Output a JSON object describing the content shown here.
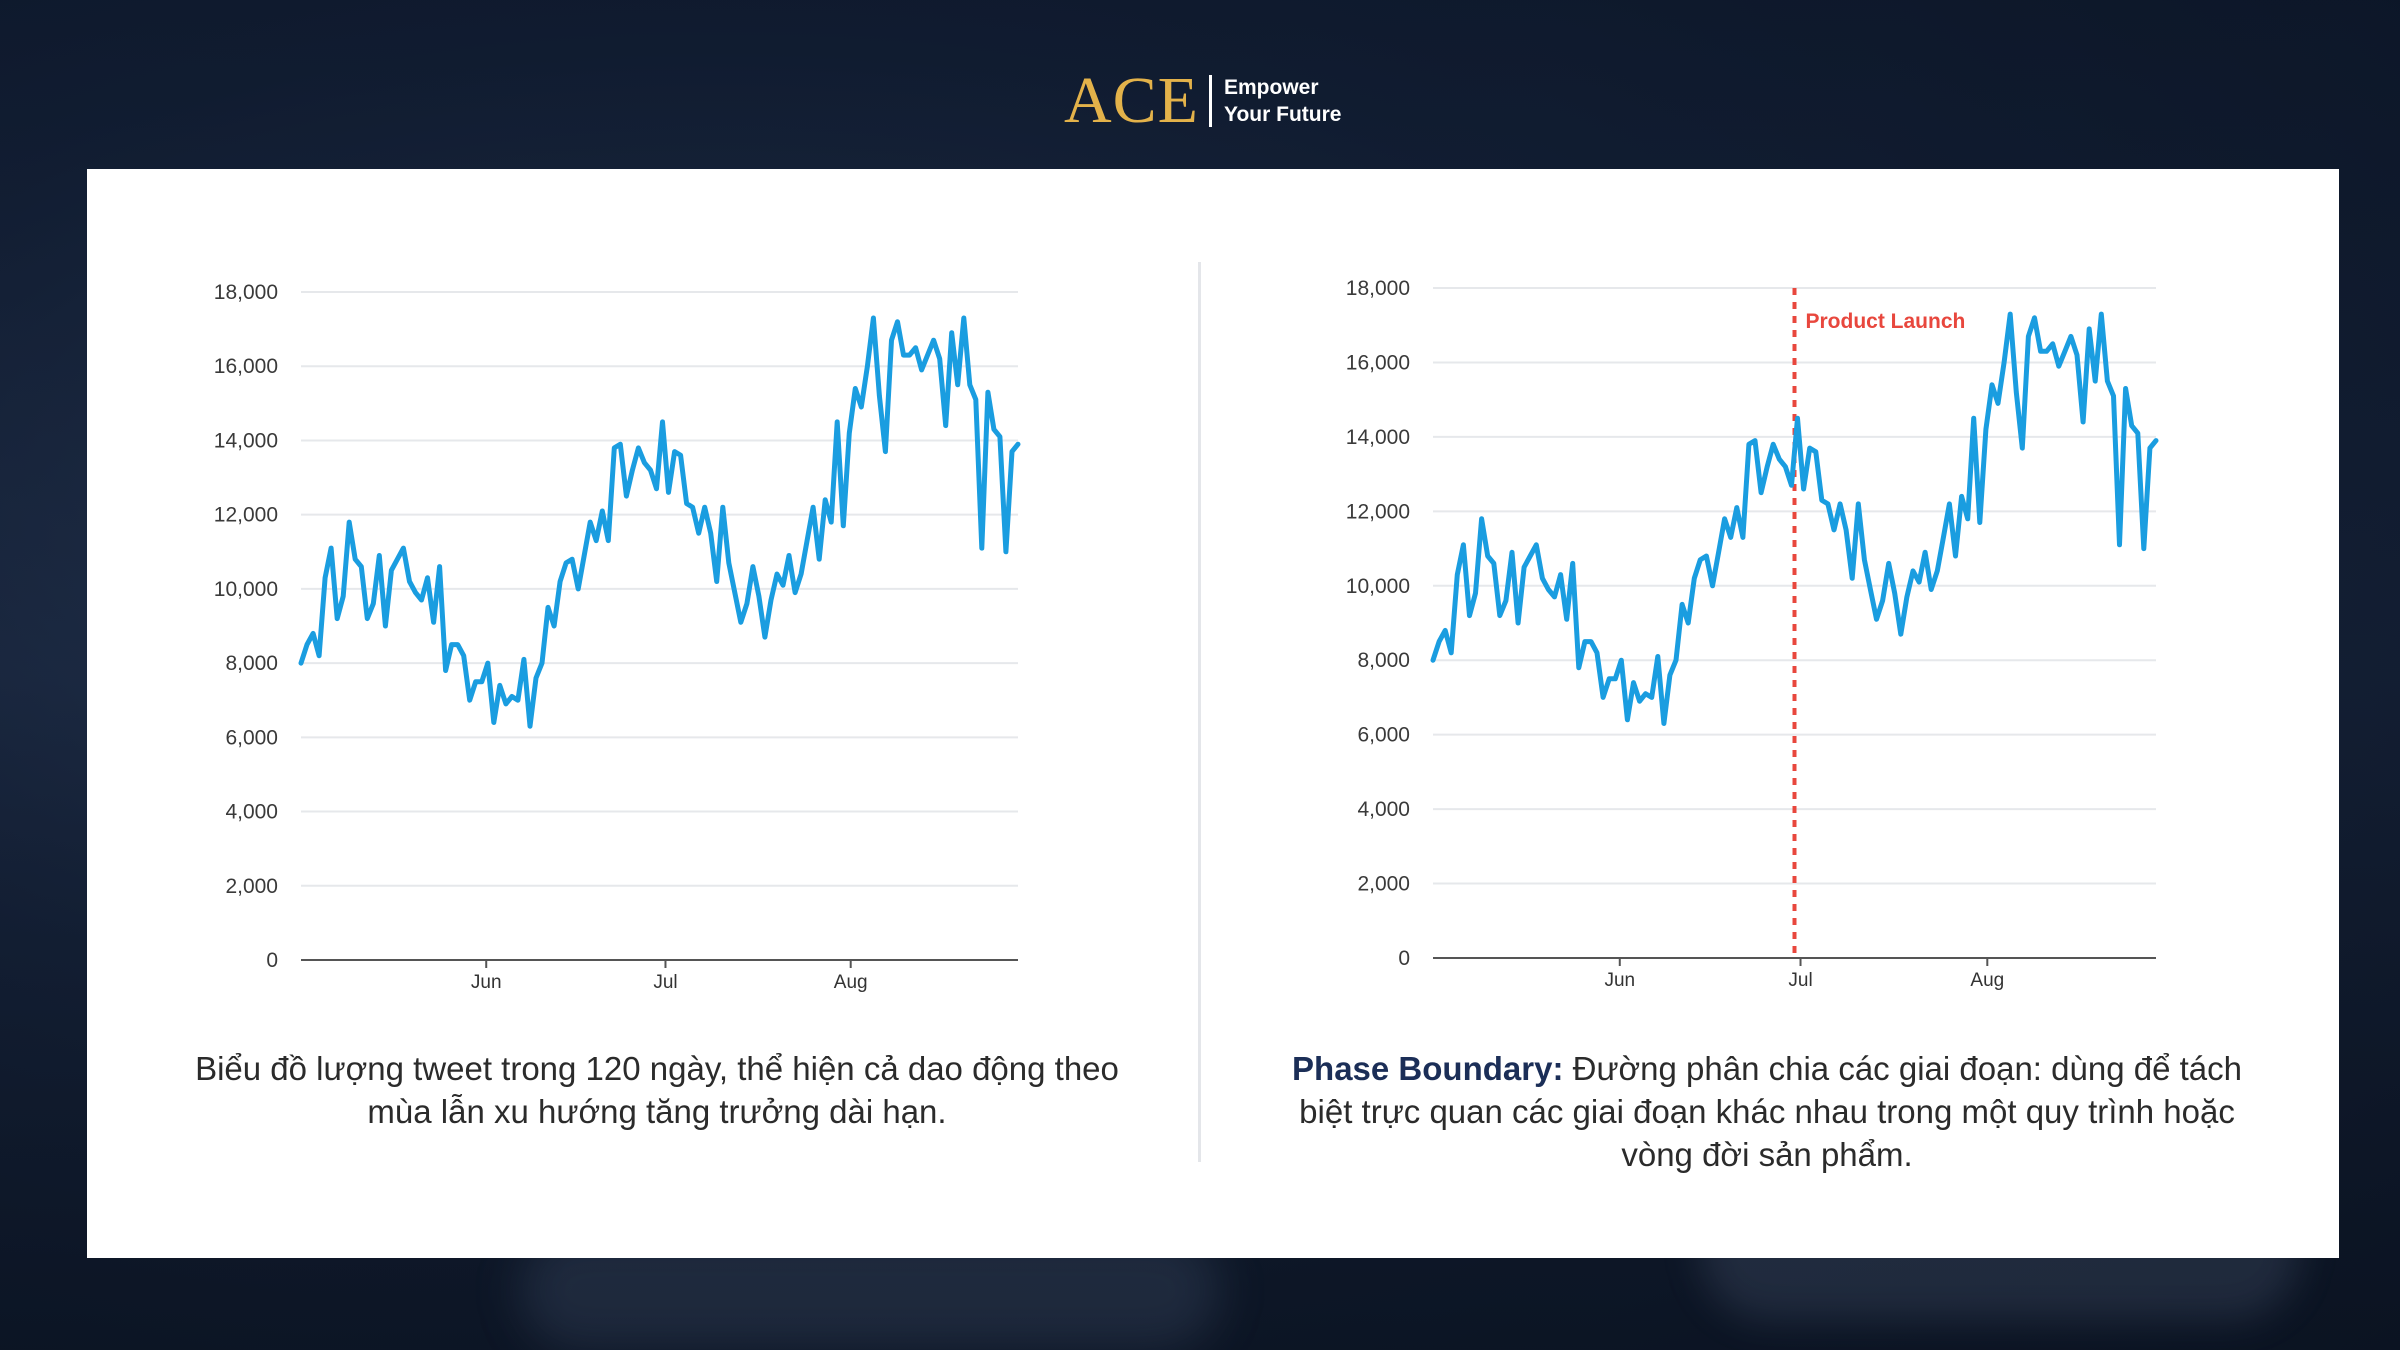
{
  "brand": {
    "logo_text": "ACE",
    "tagline_line1": "Empower",
    "tagline_line2": "Your Future",
    "logo_color": "#e3b24a"
  },
  "line_color": "#1a9de0",
  "marker_color": "#e8473d",
  "left_caption": "Biểu đồ lượng tweet trong 120 ngày, thể hiện cả dao động theo mùa lẫn xu hướng tăng trưởng dài hạn.",
  "right_caption": {
    "term": "Phase Boundary:",
    "text": " Đường phân chia các giai đoạn: dùng để tách biệt trực quan các giai đoạn khác nhau trong một quy trình hoặc vòng đời sản phẩm."
  },
  "chart_data": [
    {
      "type": "line",
      "title": "",
      "xlabel": "",
      "ylabel": "",
      "ylim": [
        0,
        18000
      ],
      "yticks": [
        0,
        2000,
        4000,
        6000,
        8000,
        10000,
        12000,
        14000,
        16000,
        18000
      ],
      "ytick_labels": [
        "0",
        "2,000",
        "4,000",
        "6,000",
        "8,000",
        "10,000",
        "12,000",
        "14,000",
        "16,000",
        "18,000"
      ],
      "x_range_days": [
        0,
        120
      ],
      "xticks": [
        {
          "label": "Jun",
          "x": 31
        },
        {
          "label": "Jul",
          "x": 61
        },
        {
          "label": "Aug",
          "x": 92
        }
      ],
      "grid": true,
      "series": [
        {
          "values": [
            8000,
            8500,
            8800,
            8200,
            10300,
            11100,
            9200,
            9800,
            11800,
            10800,
            10600,
            9200,
            9600,
            10900,
            9000,
            10500,
            10800,
            11100,
            10200,
            9900,
            9700,
            10300,
            9100,
            10600,
            7800,
            8500,
            8500,
            8200,
            7000,
            7500,
            7500,
            8000,
            6400,
            7400,
            6900,
            7100,
            7000,
            8100,
            6300,
            7600,
            8000,
            9500,
            9000,
            10200,
            10700,
            10800,
            10000,
            10900,
            11800,
            11300,
            12100,
            11300,
            13800,
            13900,
            12500,
            13200,
            13800,
            13400,
            13200,
            12700,
            14500,
            12600,
            13700,
            13600,
            12300,
            12200,
            11500,
            12200,
            11500,
            10200,
            12200,
            10700,
            9900,
            9100,
            9600,
            10600,
            9800,
            8700,
            9700,
            10400,
            10100,
            10900,
            9900,
            10400,
            11300,
            12200,
            10800,
            12400,
            11800,
            14500,
            11700,
            14200,
            15400,
            14900,
            16000,
            17300,
            15200,
            13700,
            16700,
            17200,
            16300,
            16300,
            16500,
            15900,
            16300,
            16700,
            16200,
            14400,
            16900,
            15500,
            17300,
            15500,
            15100,
            11100,
            15300,
            14300,
            14100,
            11000,
            13700,
            13900
          ]
        }
      ]
    },
    {
      "type": "line",
      "title": "",
      "xlabel": "",
      "ylabel": "",
      "ylim": [
        0,
        18000
      ],
      "yticks": [
        0,
        2000,
        4000,
        6000,
        8000,
        10000,
        12000,
        14000,
        16000,
        18000
      ],
      "ytick_labels": [
        "0",
        "2,000",
        "4,000",
        "6,000",
        "8,000",
        "10,000",
        "12,000",
        "14,000",
        "16,000",
        "18,000"
      ],
      "x_range_days": [
        0,
        120
      ],
      "xticks": [
        {
          "label": "Jun",
          "x": 31
        },
        {
          "label": "Jul",
          "x": 61
        },
        {
          "label": "Aug",
          "x": 92
        }
      ],
      "grid": true,
      "annotations": [
        {
          "type": "vertical_line",
          "x": 60,
          "label": "Product Launch",
          "style": "dashed",
          "color": "#e8473d"
        }
      ],
      "series": [
        {
          "values": [
            8000,
            8500,
            8800,
            8200,
            10300,
            11100,
            9200,
            9800,
            11800,
            10800,
            10600,
            9200,
            9600,
            10900,
            9000,
            10500,
            10800,
            11100,
            10200,
            9900,
            9700,
            10300,
            9100,
            10600,
            7800,
            8500,
            8500,
            8200,
            7000,
            7500,
            7500,
            8000,
            6400,
            7400,
            6900,
            7100,
            7000,
            8100,
            6300,
            7600,
            8000,
            9500,
            9000,
            10200,
            10700,
            10800,
            10000,
            10900,
            11800,
            11300,
            12100,
            11300,
            13800,
            13900,
            12500,
            13200,
            13800,
            13400,
            13200,
            12700,
            14500,
            12600,
            13700,
            13600,
            12300,
            12200,
            11500,
            12200,
            11500,
            10200,
            12200,
            10700,
            9900,
            9100,
            9600,
            10600,
            9800,
            8700,
            9700,
            10400,
            10100,
            10900,
            9900,
            10400,
            11300,
            12200,
            10800,
            12400,
            11800,
            14500,
            11700,
            14200,
            15400,
            14900,
            16000,
            17300,
            15200,
            13700,
            16700,
            17200,
            16300,
            16300,
            16500,
            15900,
            16300,
            16700,
            16200,
            14400,
            16900,
            15500,
            17300,
            15500,
            15100,
            11100,
            15300,
            14300,
            14100,
            11000,
            13700,
            13900
          ]
        }
      ]
    }
  ]
}
